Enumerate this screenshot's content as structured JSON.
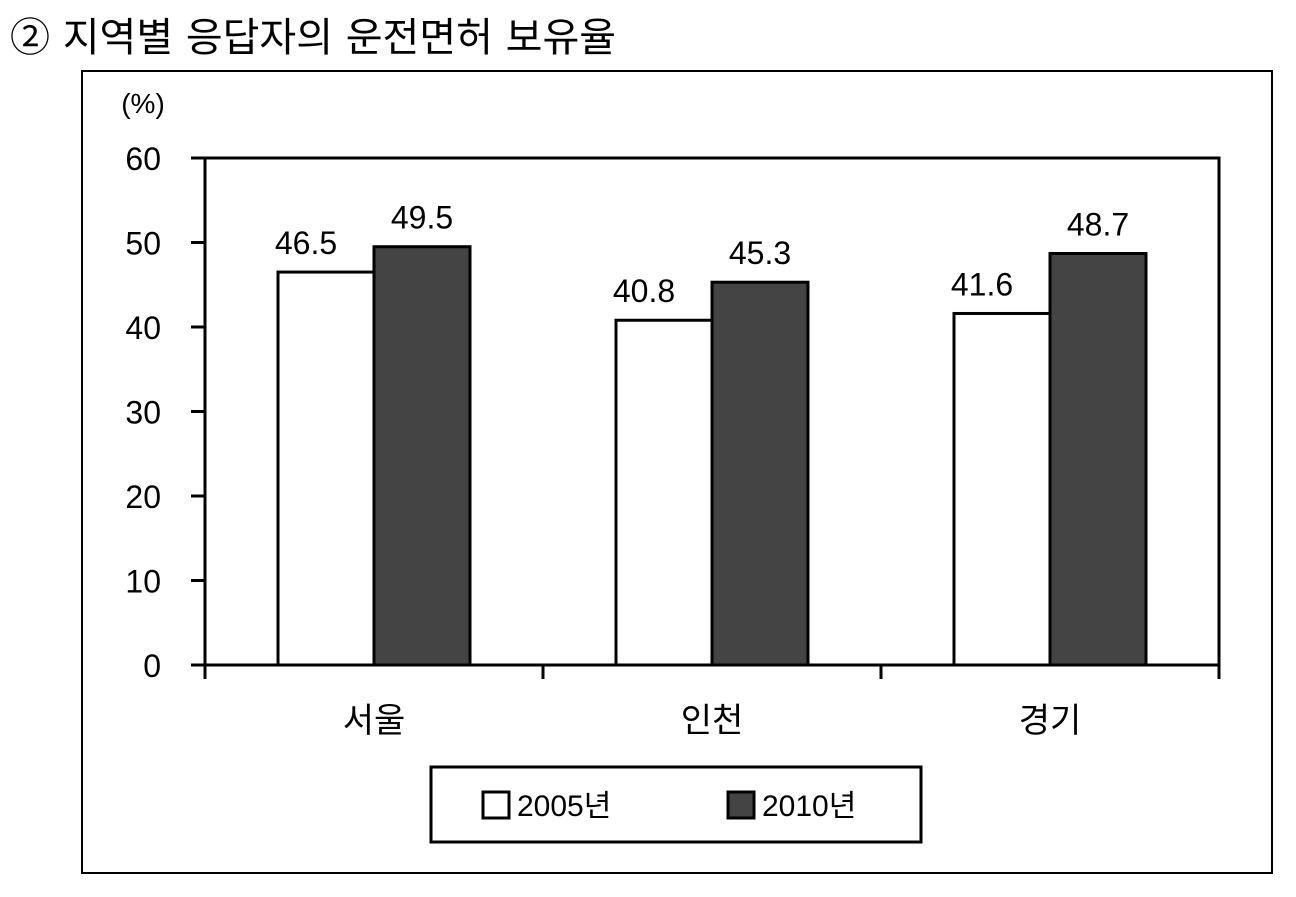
{
  "title": "② 지역별 응답자의 운전면허 보유율",
  "chart_data": {
    "type": "bar",
    "unit_label": "(%)",
    "categories": [
      "서울",
      "인천",
      "경기"
    ],
    "series": [
      {
        "name": "2005년",
        "values": [
          46.5,
          40.8,
          41.6
        ],
        "color": "#ffffff"
      },
      {
        "name": "2010년",
        "values": [
          49.5,
          45.3,
          48.7
        ],
        "color": "#444444"
      }
    ],
    "data_labels": [
      [
        "46.5",
        "40.8",
        "41.6"
      ],
      [
        "49.5",
        "45.3",
        "48.7"
      ]
    ],
    "ylim": [
      0,
      60
    ],
    "yticks": [
      0,
      10,
      20,
      30,
      40,
      50,
      60
    ],
    "ytick_labels": [
      "0",
      "10",
      "20",
      "30",
      "40",
      "50",
      "60"
    ],
    "grid": false,
    "legend_position": "bottom"
  }
}
